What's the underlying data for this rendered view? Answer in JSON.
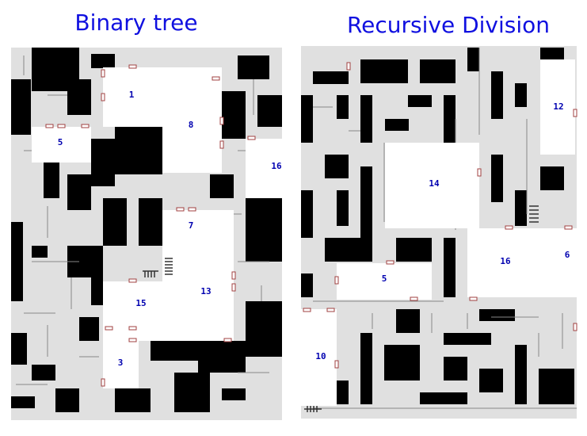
{
  "left": {
    "title": "Binary tree",
    "rooms": [
      "1",
      "8",
      "5",
      "16",
      "7",
      "13",
      "15",
      "3"
    ]
  },
  "right": {
    "title": "Recursive Division",
    "rooms": [
      "12",
      "14",
      "16",
      "6",
      "5",
      "10"
    ]
  }
}
